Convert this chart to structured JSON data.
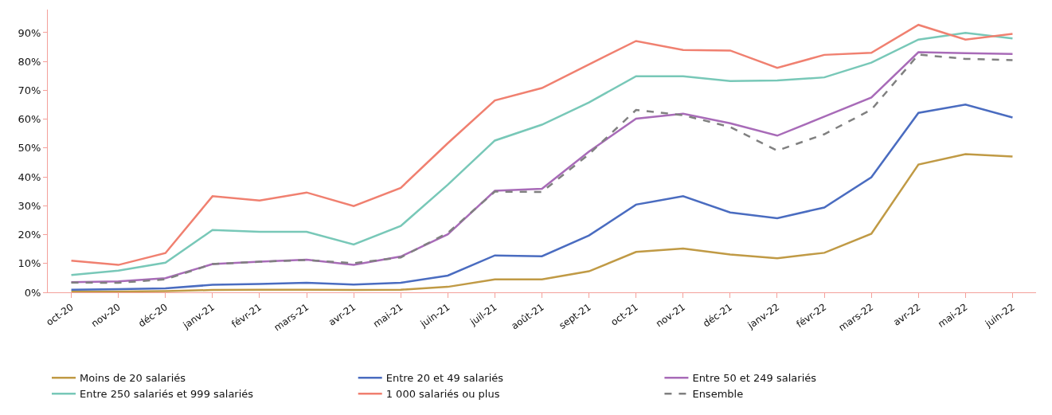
{
  "chart_data": {
    "type": "line",
    "categories": [
      "oct-20",
      "nov-20",
      "déc-20",
      "janv-21",
      "févr-21",
      "mars-21",
      "avr-21",
      "mai-21",
      "juin-21",
      "juil-21",
      "août-21",
      "sept-21",
      "oct-21",
      "nov-21",
      "déc-21",
      "janv-22",
      "févr-22",
      "mars-22",
      "avr-22",
      "mai-22",
      "juin-22"
    ],
    "series": [
      {
        "name": "Moins de 20 salariés",
        "color": "#c09a45",
        "values": [
          0.3,
          0.3,
          0.4,
          0.8,
          0.9,
          0.9,
          0.8,
          0.9,
          1.9,
          4.5,
          4.5,
          7.3,
          14.0,
          15.2,
          13.1,
          11.8,
          13.7,
          20.3,
          44.3,
          47.9,
          47.1
        ]
      },
      {
        "name": "Entre 20 et 49 salariés",
        "color": "#4a6cc0",
        "values": [
          0.9,
          1.1,
          1.4,
          2.6,
          2.9,
          3.3,
          2.7,
          3.3,
          5.8,
          12.8,
          12.5,
          19.7,
          30.4,
          33.3,
          27.7,
          25.7,
          29.4,
          39.9,
          62.2,
          65.1,
          60.6
        ]
      },
      {
        "name": "Entre 50 et 249 salariés",
        "color": "#a86bb8",
        "values": [
          3.5,
          3.8,
          4.9,
          9.8,
          10.6,
          11.3,
          9.5,
          12.4,
          20.1,
          35.2,
          35.9,
          48.8,
          60.2,
          61.9,
          58.6,
          54.3,
          60.9,
          67.5,
          83.2,
          82.9,
          82.6
        ]
      },
      {
        "name": "Entre 250 salariés et 999 salariés",
        "color": "#78c8b8",
        "values": [
          6.0,
          7.5,
          10.3,
          21.6,
          21.0,
          21.0,
          16.6,
          23.0,
          37.3,
          52.6,
          58.1,
          65.8,
          74.9,
          74.9,
          73.2,
          73.4,
          74.5,
          79.6,
          87.6,
          89.9,
          88.0
        ]
      },
      {
        "name": "1 000 salariés ou plus",
        "color": "#f08070",
        "values": [
          11.0,
          9.5,
          13.6,
          33.3,
          31.8,
          34.6,
          29.9,
          36.2,
          51.7,
          66.5,
          70.8,
          79.0,
          87.1,
          84.0,
          83.8,
          77.8,
          82.3,
          83.0,
          92.7,
          87.6,
          89.6
        ]
      },
      {
        "name": "Ensemble",
        "color": "#808080",
        "line_style": "dashed",
        "values": [
          3.4,
          3.3,
          4.5,
          9.8,
          10.6,
          11.2,
          10.1,
          12.1,
          20.6,
          34.9,
          34.8,
          47.9,
          63.2,
          61.4,
          57.3,
          49.1,
          54.8,
          63.3,
          82.4,
          80.9,
          80.5
        ]
      }
    ],
    "ylim": [
      0,
      98
    ],
    "yticks": [
      {
        "value": 0,
        "label": "0%"
      },
      {
        "value": 10,
        "label": "10%"
      },
      {
        "value": 20,
        "label": "20%"
      },
      {
        "value": 30,
        "label": "30%"
      },
      {
        "value": 40,
        "label": "40%"
      },
      {
        "value": 50,
        "label": "50%"
      },
      {
        "value": 60,
        "label": "60%"
      },
      {
        "value": 70,
        "label": "70%"
      },
      {
        "value": 80,
        "label": "80%"
      },
      {
        "value": 90,
        "label": "90%"
      }
    ],
    "legend": "bottom",
    "marker": "none",
    "line_style": "solid"
  }
}
